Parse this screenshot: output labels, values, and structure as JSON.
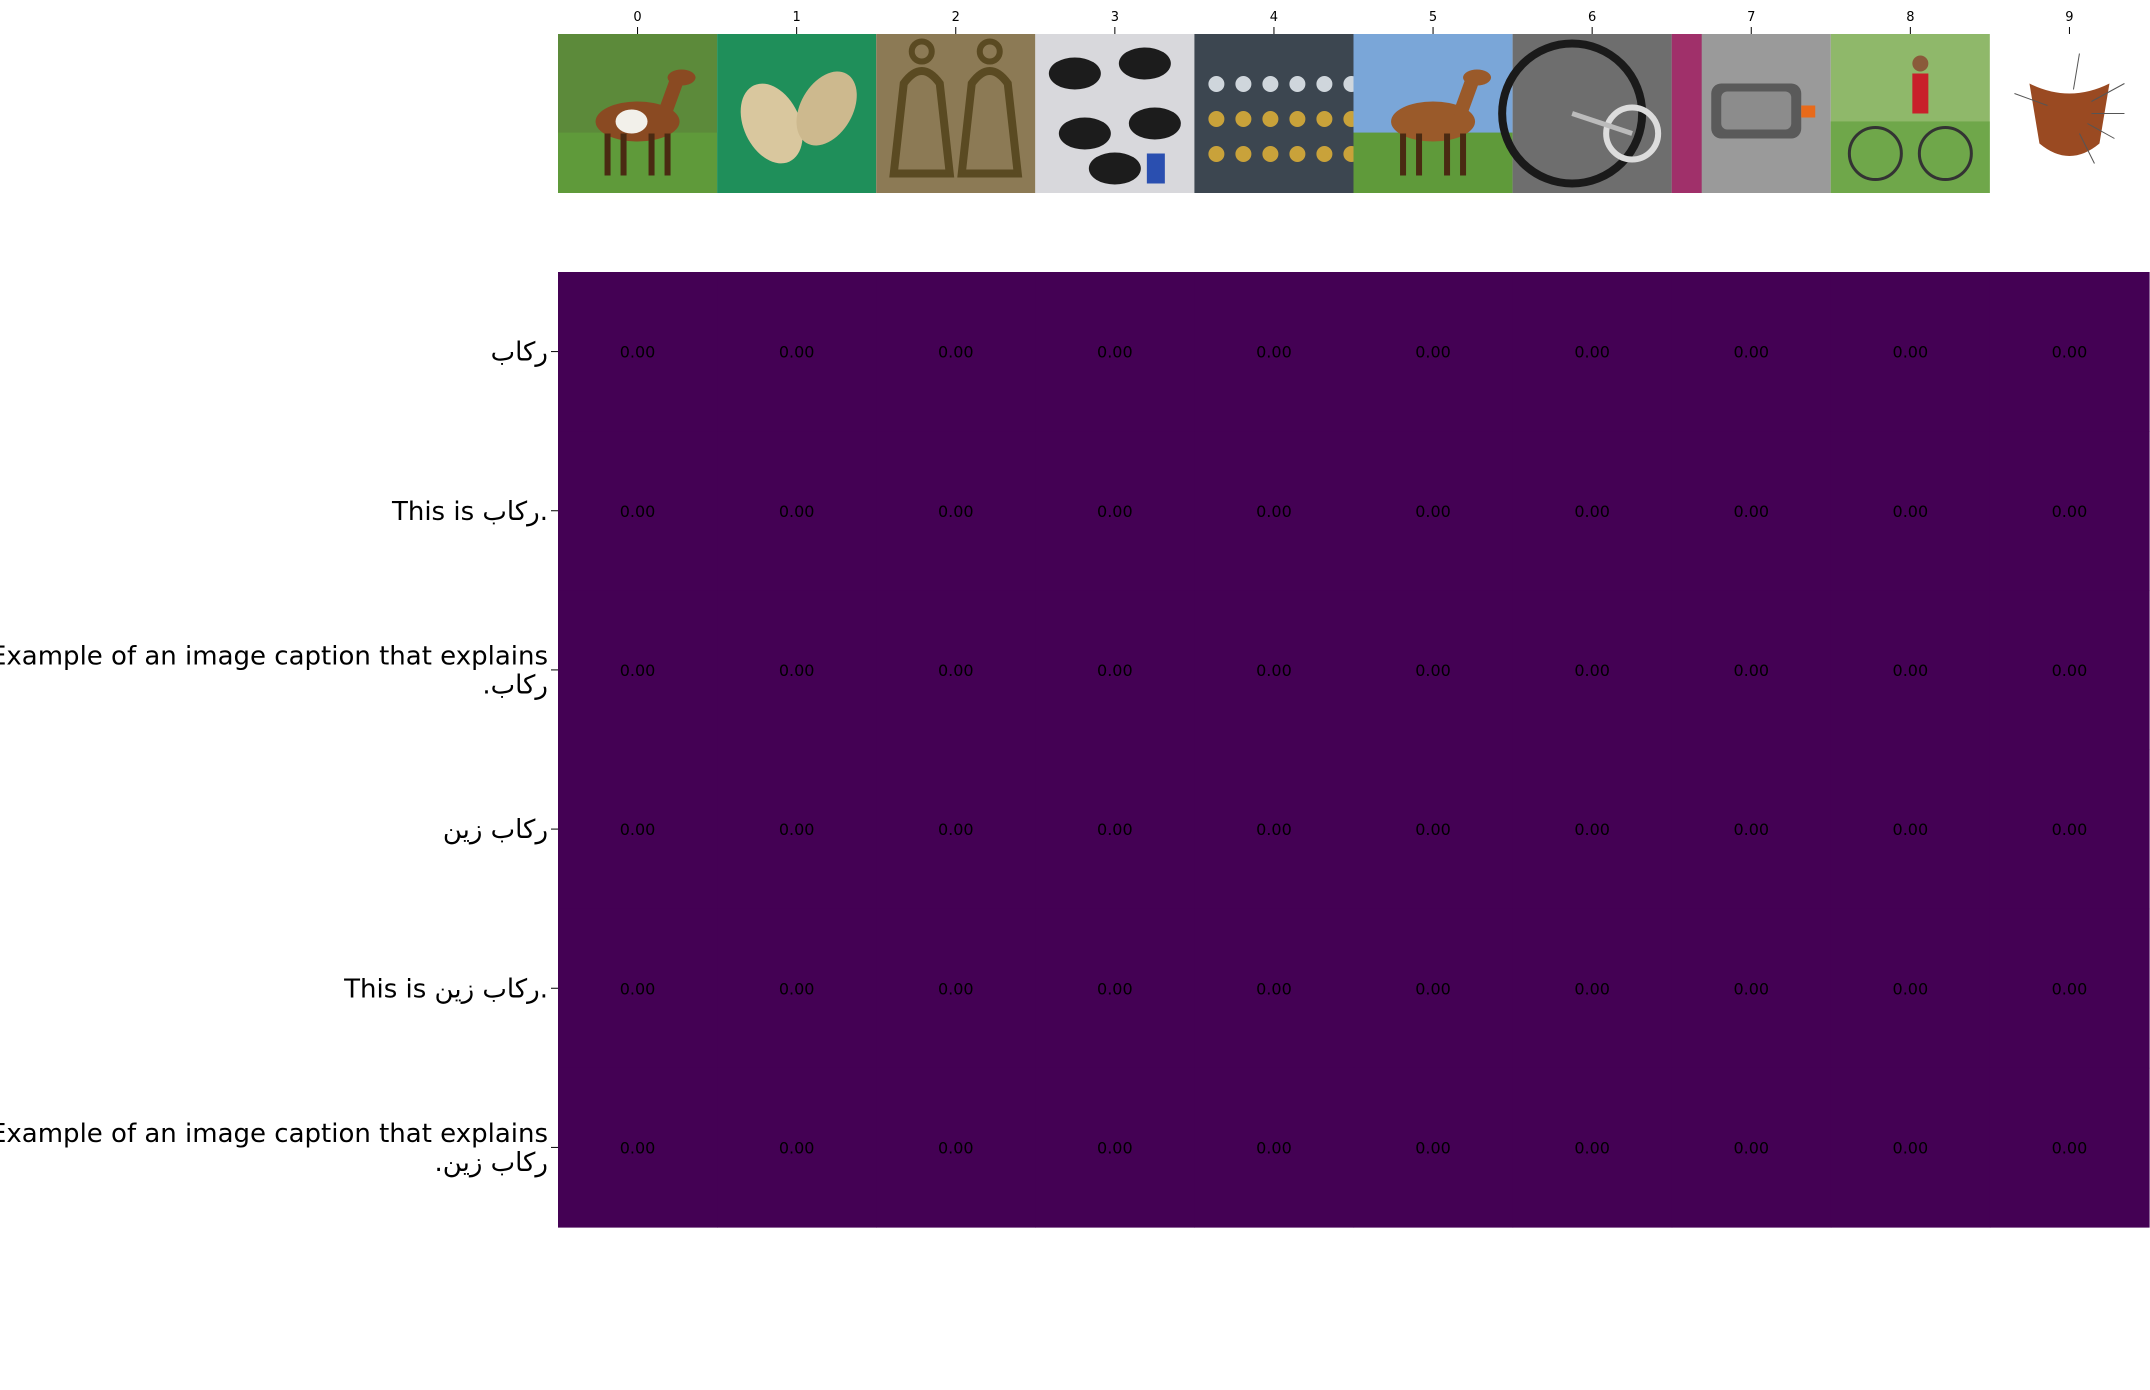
{
  "chart_data": {
    "type": "heatmap",
    "title": "",
    "xlabel": "",
    "ylabel": "",
    "x_tick_labels": [
      "0",
      "1",
      "2",
      "3",
      "4",
      "5",
      "6",
      "7",
      "8",
      "9"
    ],
    "y_tick_labels": [
      "ركاب",
      "This is ركاب.",
      "Example of an image caption that explains\nركاب.",
      "ركاب زين",
      "This is ركاب زين.",
      "Example of an image caption that explains\nركاب زين."
    ],
    "values": [
      [
        0.0,
        0.0,
        0.0,
        0.0,
        0.0,
        0.0,
        0.0,
        0.0,
        0.0,
        0.0
      ],
      [
        0.0,
        0.0,
        0.0,
        0.0,
        0.0,
        0.0,
        0.0,
        0.0,
        0.0,
        0.0
      ],
      [
        0.0,
        0.0,
        0.0,
        0.0,
        0.0,
        0.0,
        0.0,
        0.0,
        0.0,
        0.0
      ],
      [
        0.0,
        0.0,
        0.0,
        0.0,
        0.0,
        0.0,
        0.0,
        0.0,
        0.0,
        0.0
      ],
      [
        0.0,
        0.0,
        0.0,
        0.0,
        0.0,
        0.0,
        0.0,
        0.0,
        0.0,
        0.0
      ],
      [
        0.0,
        0.0,
        0.0,
        0.0,
        0.0,
        0.0,
        0.0,
        0.0,
        0.0,
        0.0
      ]
    ],
    "value_format": "0.00",
    "cell_color": "#440154",
    "annotation_color": "#000000",
    "grid": false,
    "legend": "none"
  },
  "thumbnails": [
    {
      "icon": "horse-running-photo",
      "bg": "#5c8a3a"
    },
    {
      "icon": "leather-slippers-photo",
      "bg": "#1f8f5a"
    },
    {
      "icon": "brass-stirrups-photo",
      "bg": "#8c7a55"
    },
    {
      "icon": "bicycle-saddles-photo",
      "bg": "#d8d8dc"
    },
    {
      "icon": "jewelry-display-photo",
      "bg": "#3c4650"
    },
    {
      "icon": "horse-standing-photo",
      "bg": "#7aa6d8"
    },
    {
      "icon": "bicycle-wheel-photo",
      "bg": "#6e6e6e"
    },
    {
      "icon": "bicycle-pedal-photo",
      "bg": "#9a9a9a"
    },
    {
      "icon": "cyclist-photo",
      "bg": "#8fb86a"
    },
    {
      "icon": "saddle-diagram",
      "bg": "#ffffff"
    }
  ]
}
